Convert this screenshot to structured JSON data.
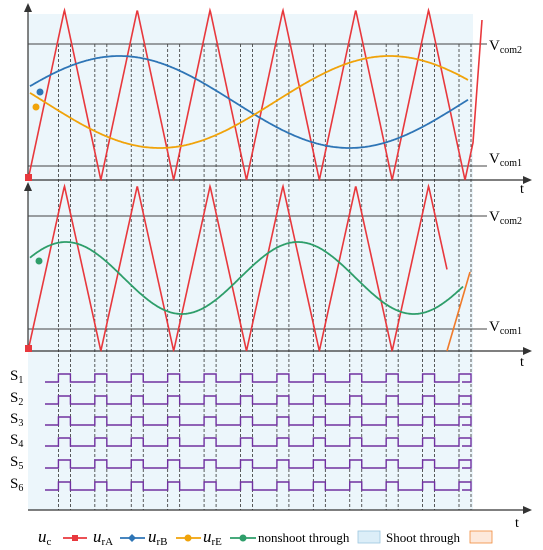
{
  "labels": {
    "vcom2_top": {
      "main": "V",
      "sub": "com2"
    },
    "vcom1_top": {
      "main": "V",
      "sub": "com1"
    },
    "vcom2_mid": {
      "main": "V",
      "sub": "com2"
    },
    "vcom1_mid": {
      "main": "V",
      "sub": "com1"
    },
    "t_top": "t",
    "t_mid": "t",
    "t_bottom": "t"
  },
  "switch_labels": [
    {
      "main": "S",
      "sub": "1"
    },
    {
      "main": "S",
      "sub": "2"
    },
    {
      "main": "S",
      "sub": "3"
    },
    {
      "main": "S",
      "sub": "4"
    },
    {
      "main": "S",
      "sub": "5"
    },
    {
      "main": "S",
      "sub": "6"
    }
  ],
  "legend": {
    "uc": {
      "main": "u",
      "sub": "c"
    },
    "urA": {
      "main": "u",
      "sub": "rA"
    },
    "urB": {
      "main": "u",
      "sub": "rB"
    },
    "urE": {
      "main": "u",
      "sub": "rE"
    },
    "nonshoot": "nonshoot through",
    "shoot": "Shoot through"
  },
  "colors": {
    "carrier": "#e8383d",
    "urA": "#e8383d",
    "urB": "#2e75b6",
    "urE": "#f0a30a",
    "nonshoot": "#2e9e6a",
    "switch": "#7030a0",
    "shoot_fill": "#dceef8",
    "shoot_legend_border": "#f08a3a",
    "axis": "#333333"
  }
}
